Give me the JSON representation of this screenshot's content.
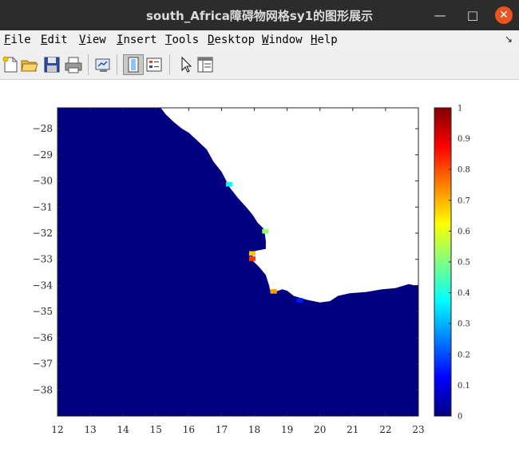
{
  "window": {
    "title": "south_Africa障碍物网格sy1的图形展示",
    "minimize_glyph": "—",
    "maximize_glyph": "□",
    "close_glyph": "✕"
  },
  "menubar": {
    "items": [
      "File",
      "Edit",
      "View",
      "Insert",
      "Tools",
      "Desktop",
      "Window",
      "Help"
    ],
    "dock_glyph": "↘"
  },
  "toolbar": {
    "icons": [
      "new-figure-icon",
      "open-file-icon",
      "save-icon",
      "print-icon",
      "link-plot-icon",
      "insert-colorbar-icon",
      "insert-legend-icon",
      "edit-plot-arrow-icon",
      "property-inspector-icon"
    ]
  },
  "chart_data": {
    "type": "heatmap",
    "title": "",
    "xlabel": "",
    "ylabel": "",
    "xlim": [
      12,
      23
    ],
    "ylim": [
      -39,
      -27.2
    ],
    "xticks": [
      12,
      13,
      14,
      15,
      16,
      17,
      18,
      19,
      20,
      21,
      22,
      23
    ],
    "yticks": [
      -28,
      -29,
      -30,
      -31,
      -32,
      -33,
      -34,
      -35,
      -36,
      -37,
      -38
    ],
    "colormap": "jet",
    "nan_color": "#ffffff",
    "colorbar": {
      "range": [
        0,
        1
      ],
      "ticks": [
        "0",
        "0.1",
        "0.2",
        "0.3",
        "0.4",
        "0.5",
        "0.6",
        "0.7",
        "0.8",
        "0.9",
        "1"
      ],
      "placement": "right"
    },
    "background_value": 0,
    "coastline": [
      [
        15.15,
        -27.2
      ],
      [
        15.3,
        -27.45
      ],
      [
        15.55,
        -27.75
      ],
      [
        15.8,
        -28.0
      ],
      [
        16.0,
        -28.15
      ],
      [
        16.3,
        -28.5
      ],
      [
        16.55,
        -28.8
      ],
      [
        16.75,
        -29.25
      ],
      [
        17.0,
        -29.65
      ],
      [
        17.25,
        -30.25
      ],
      [
        17.5,
        -30.65
      ],
      [
        17.75,
        -31.0
      ],
      [
        17.95,
        -31.3
      ],
      [
        18.1,
        -31.6
      ],
      [
        18.3,
        -31.85
      ],
      [
        18.35,
        -32.3
      ],
      [
        18.35,
        -32.6
      ],
      [
        17.95,
        -32.7
      ],
      [
        17.95,
        -33.05
      ],
      [
        18.15,
        -33.3
      ],
      [
        18.35,
        -33.6
      ],
      [
        18.45,
        -34.0
      ],
      [
        18.5,
        -34.3
      ],
      [
        18.85,
        -34.15
      ],
      [
        19.0,
        -34.2
      ],
      [
        19.2,
        -34.4
      ],
      [
        19.6,
        -34.55
      ],
      [
        20.0,
        -34.65
      ],
      [
        20.3,
        -34.6
      ],
      [
        20.55,
        -34.4
      ],
      [
        20.9,
        -34.3
      ],
      [
        21.4,
        -34.25
      ],
      [
        21.9,
        -34.15
      ],
      [
        22.3,
        -34.1
      ],
      [
        22.7,
        -33.95
      ],
      [
        22.9,
        -34.0
      ],
      [
        23.0,
        -34.0
      ]
    ],
    "highlight_cells": [
      {
        "x": 17.2,
        "y": -30.1,
        "value": 0.38
      },
      {
        "x": 18.3,
        "y": -31.9,
        "value": 0.52
      },
      {
        "x": 17.9,
        "y": -32.75,
        "value": 0.68
      },
      {
        "x": 17.9,
        "y": -32.95,
        "value": 0.82
      },
      {
        "x": 18.55,
        "y": -34.2,
        "value": 0.72
      },
      {
        "x": 19.35,
        "y": -34.55,
        "value": 0.15
      }
    ]
  }
}
